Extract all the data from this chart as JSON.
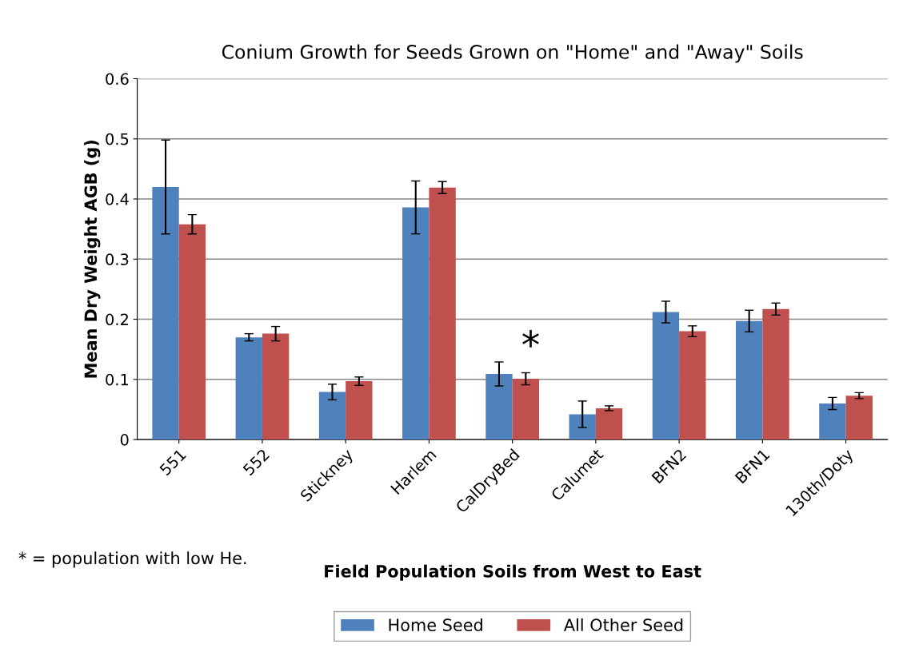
{
  "chart_data": {
    "type": "bar",
    "title": "Conium Growth for Seeds Grown on \"Home\" and \"Away\" Soils",
    "xlabel": "Field Population Soils from West to East",
    "ylabel": "Mean Dry Weight AGB (g)",
    "categories": [
      "551",
      "552",
      "Stickney",
      "Harlem",
      "CalDryBed",
      "Calumet",
      "BFN2",
      "BFN1",
      "130th/Doty"
    ],
    "series": [
      {
        "name": "Home Seed",
        "color": "#4f81bd",
        "values": [
          0.42,
          0.17,
          0.079,
          0.386,
          0.109,
          0.042,
          0.212,
          0.197,
          0.06
        ],
        "errors": [
          0.078,
          0.006,
          0.013,
          0.044,
          0.02,
          0.022,
          0.018,
          0.018,
          0.01
        ]
      },
      {
        "name": "All Other Seed",
        "color": "#c0504d",
        "values": [
          0.358,
          0.176,
          0.097,
          0.419,
          0.101,
          0.052,
          0.18,
          0.217,
          0.073
        ],
        "errors": [
          0.016,
          0.012,
          0.007,
          0.01,
          0.01,
          0.004,
          0.009,
          0.01,
          0.005
        ]
      }
    ],
    "ylim": [
      0,
      0.6
    ],
    "yticks": [
      0,
      0.1,
      0.2,
      0.3,
      0.4,
      0.5,
      0.6
    ],
    "grid": "y",
    "legend": "bottom",
    "annotations": [
      "*",
      "* = population with low He."
    ]
  }
}
